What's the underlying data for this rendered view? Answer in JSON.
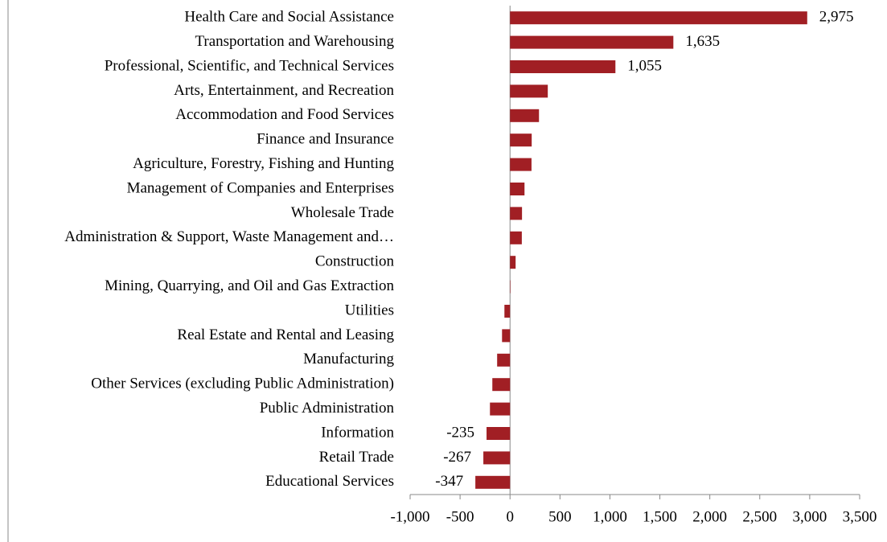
{
  "chart_data": {
    "type": "bar",
    "orientation": "horizontal",
    "color": "#a11f24",
    "categories": [
      "Health Care and Social Assistance",
      "Transportation and Warehousing",
      "Professional, Scientific, and Technical Services",
      "Arts, Entertainment, and Recreation",
      "Accommodation and Food Services",
      "Finance and Insurance",
      "Agriculture, Forestry, Fishing and Hunting",
      "Management of Companies and Enterprises",
      "Wholesale Trade",
      "Administration & Support, Waste Management and…",
      "Construction",
      "Mining, Quarrying, and Oil and Gas Extraction",
      "Utilities",
      "Real Estate and Rental and Leasing",
      "Manufacturing",
      "Other Services (excluding Public Administration)",
      "Public Administration",
      "Information",
      "Retail Trade",
      "Educational Services"
    ],
    "values": [
      2975,
      1635,
      1055,
      378,
      290,
      217,
      215,
      145,
      120,
      118,
      56,
      2,
      -56,
      -80,
      -129,
      -177,
      -201,
      -235,
      -267,
      -347
    ],
    "value_labels": [
      "2,975",
      "1,635",
      "1,055",
      null,
      null,
      null,
      null,
      null,
      null,
      null,
      null,
      null,
      null,
      null,
      null,
      null,
      null,
      "-235",
      "-267",
      "-347"
    ],
    "xlim": [
      -1000,
      3500
    ],
    "xticks": [
      {
        "value": -1000,
        "label": "-1,000"
      },
      -500,
      0,
      500,
      {
        "value": 1000,
        "label": "1,000"
      },
      {
        "value": 1500,
        "label": "1,500"
      },
      {
        "value": 2000,
        "label": "2,000"
      },
      {
        "value": 2500,
        "label": "2,500"
      },
      {
        "value": 3000,
        "label": "3,000"
      },
      {
        "value": 3500,
        "label": "3,500"
      }
    ]
  }
}
